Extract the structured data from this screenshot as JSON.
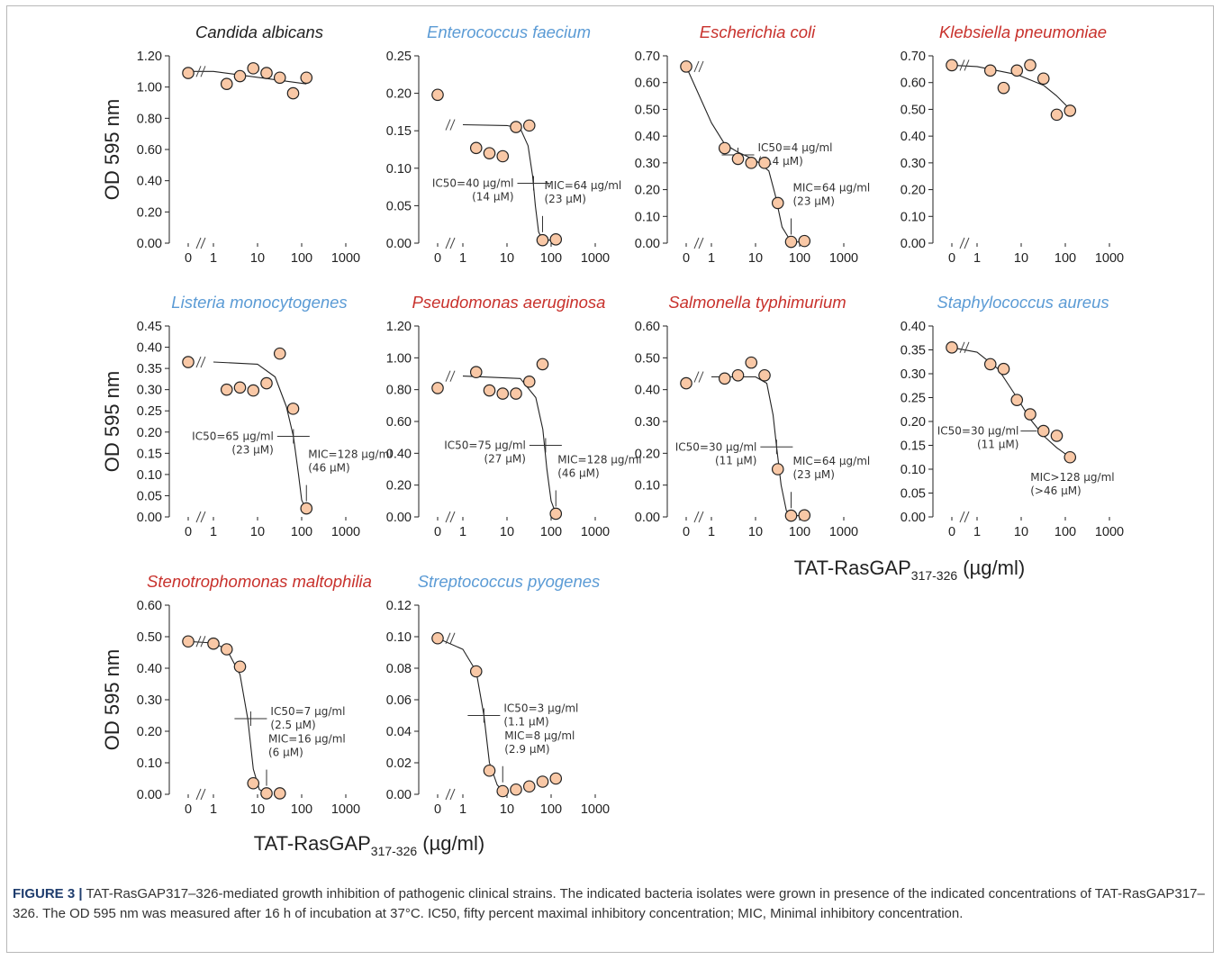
{
  "figure": {
    "caption_label": "FIGURE 3 |",
    "caption_text": " TAT-RasGAP317–326-mediated growth inhibition of pathogenic clinical strains. The indicated bacteria isolates were grown in presence of the indicated concentrations of TAT-RasGAP317–326. The OD 595 nm was measured after 16 h of incubation at 37°C. IC50, fifty percent maximal inhibitory concentration; MIC, Minimal inhibitory concentration.",
    "y_axis_label": "OD 595 nm",
    "x_axis_label_main": "TAT-RasGAP",
    "x_axis_label_sub": "317-326",
    "x_axis_label_unit": " (µg/ml)",
    "x_ticks": [
      "0",
      "1",
      "10",
      "100",
      "1000"
    ],
    "colors": {
      "marker_fill": "#f9c8a6",
      "marker_edge": "#222222",
      "gram_negative_title": "#c8312c",
      "gram_positive_title": "#5b9bd5",
      "fungus_title": "#222222"
    }
  },
  "chart_data": [
    {
      "type": "scatter",
      "title": "Candida albicans",
      "title_color": "#222222",
      "x_scale": "log",
      "ylim": [
        0,
        1.2
      ],
      "yticks": [
        "0.00",
        "0.20",
        "0.40",
        "0.60",
        "0.80",
        "1.00",
        "1.20"
      ],
      "points": [
        [
          0,
          1.09
        ],
        [
          2,
          1.02
        ],
        [
          4,
          1.07
        ],
        [
          8,
          1.12
        ],
        [
          16,
          1.09
        ],
        [
          32,
          1.06
        ],
        [
          64,
          0.96
        ],
        [
          128,
          1.06
        ]
      ],
      "fit": [
        [
          0,
          1.1
        ],
        [
          1,
          1.1
        ],
        [
          128,
          1.02
        ]
      ],
      "annotations": []
    },
    {
      "type": "scatter",
      "title": "Enterococcus faecium",
      "title_color": "#5b9bd5",
      "x_scale": "log",
      "ylim": [
        0,
        0.25
      ],
      "yticks": [
        "0.00",
        "0.05",
        "0.10",
        "0.15",
        "0.20",
        "0.25"
      ],
      "points": [
        [
          0,
          0.198
        ],
        [
          2,
          0.127
        ],
        [
          4,
          0.12
        ],
        [
          8,
          0.116
        ],
        [
          16,
          0.155
        ],
        [
          32,
          0.157
        ],
        [
          64,
          0.004
        ],
        [
          128,
          0.005
        ]
      ],
      "fit": [
        [
          1,
          0.158
        ],
        [
          10,
          0.157
        ],
        [
          20,
          0.153
        ],
        [
          30,
          0.13
        ],
        [
          38,
          0.09
        ],
        [
          44,
          0.05
        ],
        [
          52,
          0.015
        ],
        [
          64,
          0.004
        ],
        [
          128,
          0.004
        ]
      ],
      "annotations": [
        {
          "lines": [
            "IC50=40 µg/ml",
            "(14 µM)"
          ],
          "x": 40,
          "y": 0.08,
          "cross": true,
          "side": "left"
        },
        {
          "lines": [
            "MIC=64 µg/ml",
            "(23 µM)"
          ],
          "x": 64,
          "y": 0.005,
          "cross": false,
          "side": "right"
        }
      ]
    },
    {
      "type": "scatter",
      "title": "Escherichia coli",
      "title_color": "#c8312c",
      "x_scale": "log",
      "ylim": [
        0,
        0.7
      ],
      "yticks": [
        "0.00",
        "0.10",
        "0.20",
        "0.30",
        "0.40",
        "0.50",
        "0.60",
        "0.70"
      ],
      "points": [
        [
          0,
          0.66
        ],
        [
          2,
          0.355
        ],
        [
          4,
          0.315
        ],
        [
          8,
          0.3
        ],
        [
          16,
          0.3
        ],
        [
          32,
          0.15
        ],
        [
          64,
          0.005
        ],
        [
          128,
          0.008
        ]
      ],
      "fit": [
        [
          0,
          0.66
        ],
        [
          1,
          0.45
        ],
        [
          2,
          0.37
        ],
        [
          4,
          0.34
        ],
        [
          10,
          0.31
        ],
        [
          20,
          0.27
        ],
        [
          28,
          0.18
        ],
        [
          40,
          0.06
        ],
        [
          64,
          0.005
        ],
        [
          128,
          0.004
        ]
      ],
      "annotations": [
        {
          "lines": [
            "IC50=4 µg/ml",
            "(1.4 µM)"
          ],
          "x": 4,
          "y": 0.33,
          "cross": true,
          "side": "right"
        },
        {
          "lines": [
            "MIC=64 µg/ml",
            "(23 µM)"
          ],
          "x": 64,
          "y": 0.005,
          "cross": false,
          "side": "right"
        }
      ]
    },
    {
      "type": "scatter",
      "title": "Klebsiella pneumoniae",
      "title_color": "#c8312c",
      "x_scale": "log",
      "ylim": [
        0,
        0.7
      ],
      "yticks": [
        "0.00",
        "0.10",
        "0.20",
        "0.30",
        "0.40",
        "0.50",
        "0.60",
        "0.70"
      ],
      "points": [
        [
          0,
          0.665
        ],
        [
          2,
          0.645
        ],
        [
          4,
          0.58
        ],
        [
          8,
          0.645
        ],
        [
          16,
          0.665
        ],
        [
          32,
          0.615
        ],
        [
          64,
          0.48
        ],
        [
          128,
          0.495
        ]
      ],
      "fit": [
        [
          0,
          0.665
        ],
        [
          1,
          0.66
        ],
        [
          8,
          0.63
        ],
        [
          32,
          0.59
        ],
        [
          64,
          0.55
        ],
        [
          128,
          0.5
        ]
      ],
      "annotations": []
    },
    {
      "type": "scatter",
      "title": "Listeria monocytogenes",
      "title_color": "#5b9bd5",
      "x_scale": "log",
      "ylim": [
        0,
        0.45
      ],
      "yticks": [
        "0.00",
        "0.05",
        "0.10",
        "0.15",
        "0.20",
        "0.25",
        "0.30",
        "0.35",
        "0.40",
        "0.45"
      ],
      "points": [
        [
          0,
          0.365
        ],
        [
          2,
          0.3
        ],
        [
          4,
          0.305
        ],
        [
          8,
          0.298
        ],
        [
          16,
          0.315
        ],
        [
          32,
          0.385
        ],
        [
          64,
          0.255
        ],
        [
          128,
          0.02
        ]
      ],
      "fit": [
        [
          1,
          0.365
        ],
        [
          10,
          0.36
        ],
        [
          25,
          0.33
        ],
        [
          45,
          0.26
        ],
        [
          65,
          0.19
        ],
        [
          85,
          0.1
        ],
        [
          100,
          0.04
        ],
        [
          128,
          0.015
        ]
      ],
      "annotations": [
        {
          "lines": [
            "IC50=65 µg/ml",
            "(23 µM)"
          ],
          "x": 65,
          "y": 0.19,
          "cross": true,
          "side": "left"
        },
        {
          "lines": [
            "MIC=128 µg/ml",
            "(46 µM)"
          ],
          "x": 128,
          "y": 0.02,
          "cross": false,
          "side": "right"
        }
      ]
    },
    {
      "type": "scatter",
      "title": "Pseudomonas aeruginosa",
      "title_color": "#c8312c",
      "x_scale": "log",
      "ylim": [
        0,
        1.2
      ],
      "yticks": [
        "0.00",
        "0.20",
        "0.40",
        "0.60",
        "0.80",
        "1.00",
        "1.20"
      ],
      "points": [
        [
          0,
          0.81
        ],
        [
          2,
          0.91
        ],
        [
          4,
          0.795
        ],
        [
          8,
          0.775
        ],
        [
          16,
          0.775
        ],
        [
          32,
          0.85
        ],
        [
          64,
          0.96
        ],
        [
          128,
          0.02
        ]
      ],
      "fit": [
        [
          1,
          0.885
        ],
        [
          20,
          0.87
        ],
        [
          45,
          0.75
        ],
        [
          65,
          0.55
        ],
        [
          80,
          0.3
        ],
        [
          100,
          0.1
        ],
        [
          128,
          0.02
        ]
      ],
      "annotations": [
        {
          "lines": [
            "IC50=75 µg/ml",
            "(27 µM)"
          ],
          "x": 75,
          "y": 0.45,
          "cross": true,
          "side": "left"
        },
        {
          "lines": [
            "MIC=128 µg/ml",
            "(46 µM)"
          ],
          "x": 128,
          "y": 0.02,
          "cross": false,
          "side": "right"
        }
      ]
    },
    {
      "type": "scatter",
      "title": "Salmonella typhimurium",
      "title_color": "#c8312c",
      "x_scale": "log",
      "ylim": [
        0,
        0.6
      ],
      "yticks": [
        "0.00",
        "0.10",
        "0.20",
        "0.30",
        "0.40",
        "0.50",
        "0.60"
      ],
      "points": [
        [
          0,
          0.42
        ],
        [
          2,
          0.435
        ],
        [
          4,
          0.445
        ],
        [
          8,
          0.485
        ],
        [
          16,
          0.445
        ],
        [
          32,
          0.15
        ],
        [
          64,
          0.004
        ],
        [
          128,
          0.005
        ]
      ],
      "fit": [
        [
          1,
          0.44
        ],
        [
          10,
          0.44
        ],
        [
          18,
          0.42
        ],
        [
          25,
          0.32
        ],
        [
          30,
          0.22
        ],
        [
          38,
          0.1
        ],
        [
          50,
          0.02
        ],
        [
          64,
          0.004
        ],
        [
          128,
          0.004
        ]
      ],
      "annotations": [
        {
          "lines": [
            "IC50=30 µg/ml",
            "(11 µM)"
          ],
          "x": 30,
          "y": 0.22,
          "cross": true,
          "side": "left"
        },
        {
          "lines": [
            "MIC=64 µg/ml",
            "(23 µM)"
          ],
          "x": 64,
          "y": 0.005,
          "cross": false,
          "side": "right"
        }
      ]
    },
    {
      "type": "scatter",
      "title": "Staphylococcus aureus",
      "title_color": "#5b9bd5",
      "x_scale": "log",
      "ylim": [
        0,
        0.4
      ],
      "yticks": [
        "0.00",
        "0.05",
        "0.10",
        "0.15",
        "0.20",
        "0.25",
        "0.30",
        "0.35",
        "0.40"
      ],
      "points": [
        [
          0,
          0.355
        ],
        [
          2,
          0.32
        ],
        [
          4,
          0.31
        ],
        [
          8,
          0.245
        ],
        [
          16,
          0.215
        ],
        [
          32,
          0.18
        ],
        [
          64,
          0.17
        ],
        [
          128,
          0.125
        ]
      ],
      "fit": [
        [
          0,
          0.355
        ],
        [
          1,
          0.345
        ],
        [
          3,
          0.31
        ],
        [
          8,
          0.25
        ],
        [
          16,
          0.205
        ],
        [
          32,
          0.17
        ],
        [
          64,
          0.145
        ],
        [
          128,
          0.125
        ]
      ],
      "annotations": [
        {
          "lines": [
            "IC50=30 µg/ml",
            "(11 µM)"
          ],
          "x": 30,
          "y": 0.18,
          "cross": false,
          "side": "left"
        },
        {
          "lines": [
            "MIC>128 µg/ml",
            "(>46 µM)"
          ],
          "x": 128,
          "y": 0.125,
          "cross": false,
          "side": "below"
        }
      ]
    },
    {
      "type": "scatter",
      "title": "Stenotrophomonas maltophilia",
      "title_color": "#c8312c",
      "x_scale": "log",
      "ylim": [
        0,
        0.6
      ],
      "yticks": [
        "0.00",
        "0.10",
        "0.20",
        "0.30",
        "0.40",
        "0.50",
        "0.60"
      ],
      "points": [
        [
          0,
          0.485
        ],
        [
          1,
          0.478
        ],
        [
          2,
          0.46
        ],
        [
          4,
          0.405
        ],
        [
          8,
          0.035
        ],
        [
          16,
          0.003
        ],
        [
          32,
          0.003
        ]
      ],
      "fit": [
        [
          0,
          0.485
        ],
        [
          1,
          0.48
        ],
        [
          2,
          0.46
        ],
        [
          4,
          0.38
        ],
        [
          6,
          0.24
        ],
        [
          8,
          0.08
        ],
        [
          11,
          0.015
        ],
        [
          16,
          0.004
        ]
      ],
      "annotations": [
        {
          "lines": [
            "IC50=7 µg/ml",
            "(2.5 µM)"
          ],
          "x": 7,
          "y": 0.24,
          "cross": true,
          "side": "right"
        },
        {
          "lines": [
            "MIC=16 µg/ml",
            "(6 µM)"
          ],
          "x": 16,
          "y": 0.004,
          "cross": false,
          "side": "right"
        }
      ]
    },
    {
      "type": "scatter",
      "title": "Streptococcus pyogenes",
      "title_color": "#5b9bd5",
      "x_scale": "log",
      "ylim": [
        0,
        0.12
      ],
      "yticks": [
        "0.00",
        "0.02",
        "0.04",
        "0.06",
        "0.08",
        "0.10",
        "0.12"
      ],
      "points": [
        [
          0,
          0.099
        ],
        [
          2,
          0.078
        ],
        [
          4,
          0.015
        ],
        [
          8,
          0.002
        ],
        [
          16,
          0.003
        ],
        [
          32,
          0.005
        ],
        [
          64,
          0.008
        ],
        [
          128,
          0.01
        ]
      ],
      "fit": [
        [
          0,
          0.099
        ],
        [
          1,
          0.092
        ],
        [
          2,
          0.078
        ],
        [
          3,
          0.05
        ],
        [
          4,
          0.02
        ],
        [
          6,
          0.006
        ],
        [
          8,
          0.002
        ]
      ],
      "annotations": [
        {
          "lines": [
            "IC50=3 µg/ml",
            "(1.1 µM)"
          ],
          "x": 3,
          "y": 0.05,
          "cross": true,
          "side": "right"
        },
        {
          "lines": [
            "MIC=8 µg/ml",
            "(2.9 µM)"
          ],
          "x": 8,
          "y": 0.003,
          "cross": false,
          "side": "right"
        }
      ]
    }
  ]
}
